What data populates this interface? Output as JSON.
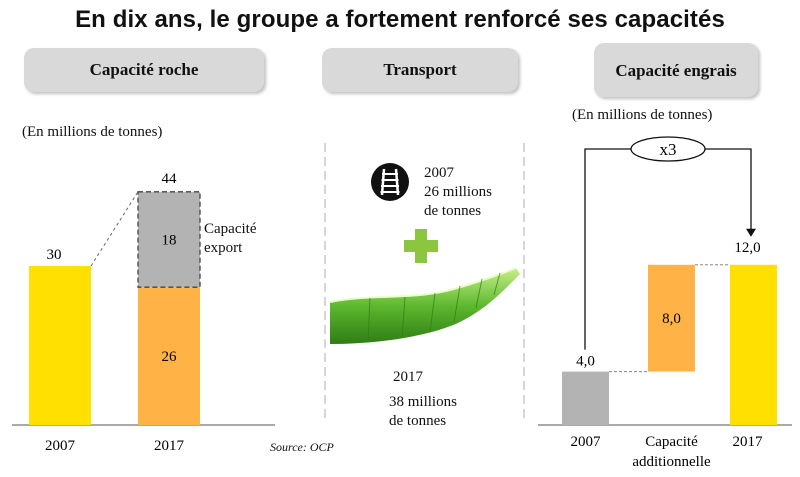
{
  "title": "En dix ans, le groupe a fortement renforcé ses capacités",
  "panels": {
    "rock": {
      "header": "Capacité roche",
      "unit": "(En millions de tonnes)",
      "export_label": "Capacité export"
    },
    "transport": {
      "header": "Transport",
      "rail": {
        "year": "2007",
        "amount_line1": "26 millions",
        "amount_line2": "de tonnes"
      },
      "pipeline": {
        "year": "2017",
        "amount_line1": "38 millions",
        "amount_line2": "de tonnes"
      },
      "source": "Source: OCP"
    },
    "fertilizer": {
      "header": "Capacité engrais",
      "unit": "(En millions de tonnes)",
      "multiplier": "x3"
    }
  },
  "colors": {
    "yellow": "#ffe000",
    "orange": "#ffb347",
    "gray": "#b3b3b3",
    "pill": "#d9d9d9",
    "plus_green": "#8cc63f",
    "pipe_green": "#5cb82e"
  },
  "icons": [
    "rail-track-icon",
    "plus-icon",
    "pipeline-icon"
  ],
  "chart_data": [
    {
      "type": "bar",
      "title": "Capacité roche",
      "ylabel": "(En millions de tonnes)",
      "categories": [
        "2007",
        "2017"
      ],
      "series": [
        {
          "name": "",
          "values": [
            30,
            26
          ],
          "labels": [
            "30",
            "26"
          ]
        },
        {
          "name": "Capacité export",
          "values": [
            0,
            18
          ],
          "labels": [
            "",
            "18"
          ]
        }
      ],
      "totals": [
        30,
        44
      ],
      "total_labels": [
        "",
        "44"
      ],
      "ylim": [
        0,
        44
      ],
      "stacked": true,
      "grid": false
    },
    {
      "type": "bar",
      "title": "Capacité engrais",
      "ylabel": "(En millions de tonnes)",
      "categories": [
        "2007",
        "Capacité additionnelle",
        "2017"
      ],
      "values": [
        4.0,
        8.0,
        12.0
      ],
      "labels": [
        "4,0",
        "8,0",
        "12,0"
      ],
      "waterfall": true,
      "ylim": [
        0,
        12
      ],
      "annotation": "x3",
      "grid": false
    }
  ]
}
